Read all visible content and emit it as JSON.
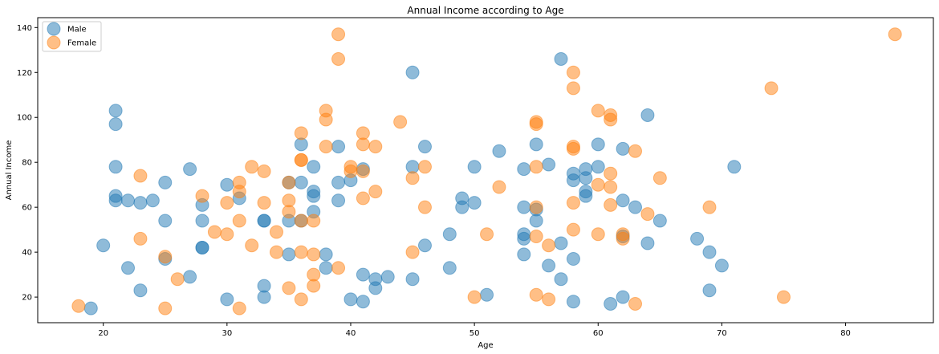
{
  "chart_data": {
    "type": "scatter",
    "title": "Annual Income according to Age",
    "xlabel": "Age",
    "ylabel": "Annual Income",
    "xlim": [
      14.7,
      87.1
    ],
    "ylim": [
      8.6,
      144.4
    ],
    "xticks": [
      20,
      30,
      40,
      50,
      60,
      70,
      80
    ],
    "yticks": [
      20,
      40,
      60,
      80,
      100,
      120,
      140
    ],
    "grid": false,
    "legend_position": "top-left",
    "series": [
      {
        "name": "Male",
        "color": "#1f77b4",
        "points": [
          [
            19,
            15
          ],
          [
            20,
            43
          ],
          [
            21,
            103
          ],
          [
            21,
            97
          ],
          [
            21,
            78
          ],
          [
            21,
            65
          ],
          [
            21,
            63
          ],
          [
            22,
            33
          ],
          [
            22,
            63
          ],
          [
            23,
            62
          ],
          [
            23,
            23
          ],
          [
            24,
            63
          ],
          [
            25,
            71
          ],
          [
            25,
            54
          ],
          [
            25,
            37
          ],
          [
            27,
            77
          ],
          [
            27,
            29
          ],
          [
            28,
            42
          ],
          [
            28,
            42
          ],
          [
            28,
            54
          ],
          [
            28,
            61
          ],
          [
            30,
            70
          ],
          [
            30,
            19
          ],
          [
            31,
            64
          ],
          [
            33,
            54
          ],
          [
            33,
            54
          ],
          [
            33,
            25
          ],
          [
            33,
            20
          ],
          [
            35,
            71
          ],
          [
            35,
            54
          ],
          [
            35,
            39
          ],
          [
            36,
            88
          ],
          [
            36,
            71
          ],
          [
            36,
            54
          ],
          [
            37,
            78
          ],
          [
            37,
            67
          ],
          [
            37,
            65
          ],
          [
            37,
            58
          ],
          [
            38,
            39
          ],
          [
            38,
            33
          ],
          [
            39,
            87
          ],
          [
            39,
            71
          ],
          [
            39,
            63
          ],
          [
            40,
            72
          ],
          [
            40,
            19
          ],
          [
            41,
            77
          ],
          [
            41,
            30
          ],
          [
            41,
            18
          ],
          [
            42,
            28
          ],
          [
            42,
            24
          ],
          [
            43,
            29
          ],
          [
            45,
            120
          ],
          [
            45,
            78
          ],
          [
            45,
            28
          ],
          [
            46,
            87
          ],
          [
            46,
            43
          ],
          [
            48,
            48
          ],
          [
            48,
            33
          ],
          [
            49,
            64
          ],
          [
            49,
            60
          ],
          [
            50,
            78
          ],
          [
            50,
            62
          ],
          [
            51,
            21
          ],
          [
            52,
            85
          ],
          [
            54,
            77
          ],
          [
            54,
            60
          ],
          [
            54,
            48
          ],
          [
            54,
            46
          ],
          [
            54,
            39
          ],
          [
            55,
            88
          ],
          [
            55,
            59
          ],
          [
            55,
            54
          ],
          [
            56,
            79
          ],
          [
            56,
            34
          ],
          [
            57,
            126
          ],
          [
            57,
            44
          ],
          [
            57,
            28
          ],
          [
            58,
            75
          ],
          [
            58,
            72
          ],
          [
            58,
            37
          ],
          [
            58,
            18
          ],
          [
            59,
            77
          ],
          [
            59,
            73
          ],
          [
            59,
            67
          ],
          [
            59,
            65
          ],
          [
            60,
            88
          ],
          [
            60,
            78
          ],
          [
            61,
            17
          ],
          [
            62,
            86
          ],
          [
            62,
            63
          ],
          [
            62,
            47
          ],
          [
            62,
            20
          ],
          [
            63,
            60
          ],
          [
            64,
            101
          ],
          [
            64,
            44
          ],
          [
            65,
            54
          ],
          [
            68,
            46
          ],
          [
            69,
            40
          ],
          [
            69,
            23
          ],
          [
            70,
            34
          ],
          [
            71,
            78
          ]
        ]
      },
      {
        "name": "Female",
        "color": "#ff7f0e",
        "points": [
          [
            18,
            16
          ],
          [
            23,
            74
          ],
          [
            23,
            46
          ],
          [
            25,
            38
          ],
          [
            25,
            15
          ],
          [
            26,
            28
          ],
          [
            28,
            65
          ],
          [
            29,
            49
          ],
          [
            30,
            62
          ],
          [
            30,
            48
          ],
          [
            31,
            71
          ],
          [
            31,
            67
          ],
          [
            31,
            54
          ],
          [
            31,
            15
          ],
          [
            32,
            78
          ],
          [
            32,
            43
          ],
          [
            33,
            76
          ],
          [
            33,
            62
          ],
          [
            34,
            49
          ],
          [
            34,
            40
          ],
          [
            35,
            71
          ],
          [
            35,
            63
          ],
          [
            35,
            58
          ],
          [
            35,
            24
          ],
          [
            36,
            93
          ],
          [
            36,
            81
          ],
          [
            36,
            81
          ],
          [
            36,
            54
          ],
          [
            36,
            40
          ],
          [
            36,
            19
          ],
          [
            37,
            54
          ],
          [
            37,
            39
          ],
          [
            37,
            30
          ],
          [
            37,
            25
          ],
          [
            38,
            103
          ],
          [
            38,
            99
          ],
          [
            38,
            87
          ],
          [
            39,
            137
          ],
          [
            39,
            126
          ],
          [
            39,
            33
          ],
          [
            40,
            78
          ],
          [
            40,
            76
          ],
          [
            41,
            93
          ],
          [
            41,
            88
          ],
          [
            41,
            76
          ],
          [
            41,
            64
          ],
          [
            42,
            87
          ],
          [
            42,
            67
          ],
          [
            44,
            98
          ],
          [
            45,
            73
          ],
          [
            45,
            40
          ],
          [
            46,
            78
          ],
          [
            46,
            60
          ],
          [
            50,
            20
          ],
          [
            51,
            48
          ],
          [
            52,
            69
          ],
          [
            55,
            98
          ],
          [
            55,
            97
          ],
          [
            55,
            78
          ],
          [
            55,
            60
          ],
          [
            55,
            47
          ],
          [
            55,
            21
          ],
          [
            56,
            43
          ],
          [
            56,
            19
          ],
          [
            58,
            120
          ],
          [
            58,
            113
          ],
          [
            58,
            87
          ],
          [
            58,
            86
          ],
          [
            58,
            62
          ],
          [
            58,
            50
          ],
          [
            60,
            103
          ],
          [
            60,
            70
          ],
          [
            60,
            48
          ],
          [
            61,
            101
          ],
          [
            61,
            99
          ],
          [
            61,
            75
          ],
          [
            61,
            69
          ],
          [
            61,
            61
          ],
          [
            62,
            48
          ],
          [
            62,
            46
          ],
          [
            63,
            85
          ],
          [
            63,
            17
          ],
          [
            64,
            57
          ],
          [
            65,
            73
          ],
          [
            69,
            60
          ],
          [
            74,
            113
          ],
          [
            75,
            20
          ],
          [
            84,
            137
          ]
        ]
      }
    ]
  }
}
